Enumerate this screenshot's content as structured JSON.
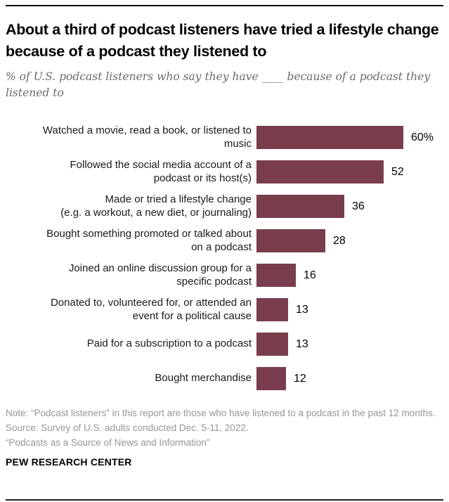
{
  "header": {
    "title": "About a third of podcast listeners have tried a lifestyle change because of a podcast they listened to",
    "subtitle": "% of U.S. podcast listeners who say they have ____ because of a podcast they listened to"
  },
  "chart_data": {
    "type": "bar",
    "orientation": "horizontal",
    "title": "About a third of podcast listeners have tried a lifestyle change because of a podcast they listened to",
    "subtitle": "% of U.S. podcast listeners who say they have ____ because of a podcast they listened to",
    "categories": [
      "Watched a movie, read a book, or listened to\nmusic",
      "Followed the social media account of a\npodcast or its host(s)",
      "Made or tried a lifestyle change\n(e.g. a workout, a new diet, or journaling)",
      "Bought something promoted or talked about\non a podcast",
      "Joined an online discussion group for a\nspecific podcast",
      "Donated to, volunteered for, or attended an\nevent for a political cause",
      "Paid for a subscription to a podcast",
      "Bought merchandise"
    ],
    "values": [
      60,
      52,
      36,
      28,
      16,
      13,
      13,
      12
    ],
    "value_labels": [
      "60%",
      "52",
      "36",
      "28",
      "16",
      "13",
      "13",
      "12"
    ],
    "bar_color": "#7a3d4d",
    "xlim": [
      0,
      65
    ],
    "grid": false,
    "legend": null
  },
  "footer": {
    "note": "Note: “Podcast listeners” in this report are those who have listened to a podcast in the past 12 months.",
    "source": "Source: Survey of U.S. adults conducted Dec. 5-11, 2022.",
    "report": "“Podcasts as a Source of News and Information”",
    "brand": "PEW RESEARCH CENTER"
  }
}
